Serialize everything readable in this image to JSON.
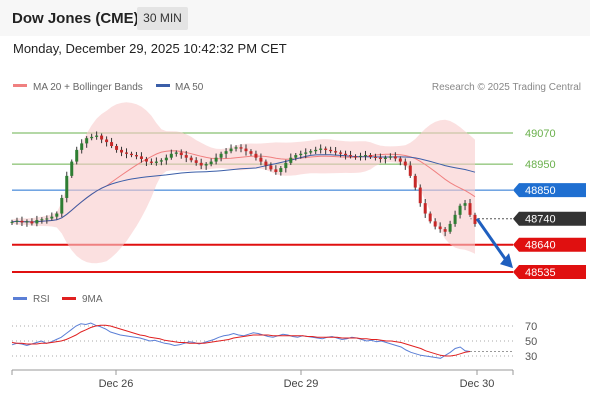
{
  "header": {
    "title": "Dow Jones (CME)",
    "timeframe": "30 MIN",
    "datetime": "Monday, December 29, 2025 10:42:32 PM CET"
  },
  "legend": {
    "ma20_label": "MA 20 + Bollinger Bands",
    "ma50_label": "MA 50",
    "credit": "Research © 2025 Trading Central",
    "colors": {
      "ma20": "#f08080",
      "ma50": "#3b5ea8"
    }
  },
  "rsi_legend": {
    "rsi_label": "RSI",
    "ma_label": "9MA",
    "colors": {
      "rsi": "#5b7fd6",
      "ma": "#e02020"
    }
  },
  "chart_data": [
    {
      "type": "candlestick",
      "title": "Dow Jones (CME) 30 MIN",
      "xlabel": "",
      "ylabel": "",
      "ylim": [
        48480,
        49200
      ],
      "x_tick_labels": [
        "Dec 26",
        "Dec 29",
        "Dec 30"
      ],
      "price_levels": [
        {
          "value": 49070,
          "label": "49070",
          "kind": "resistance",
          "color": "#6ab04c"
        },
        {
          "value": 48950,
          "label": "48950",
          "kind": "resistance",
          "color": "#6ab04c"
        },
        {
          "value": 48850,
          "label": "48850",
          "kind": "pivot",
          "color": "#1f6fd1"
        },
        {
          "value": 48740,
          "label": "48740",
          "kind": "last_price",
          "color": "#333333"
        },
        {
          "value": 48640,
          "label": "48640",
          "kind": "support",
          "color": "#e01010"
        },
        {
          "value": 48535,
          "label": "48535",
          "kind": "support",
          "color": "#e01010"
        }
      ],
      "close_path": [
        48728,
        48732,
        48726,
        48730,
        48722,
        48735,
        48738,
        48741,
        48748,
        48760,
        48820,
        48905,
        48960,
        49005,
        49030,
        49050,
        49055,
        49060,
        49045,
        49035,
        49020,
        49005,
        48995,
        48990,
        48985,
        48980,
        48970,
        48960,
        48955,
        48960,
        48965,
        48975,
        48990,
        48995,
        48985,
        48975,
        48965,
        48955,
        48945,
        48950,
        48960,
        48975,
        48990,
        49000,
        49010,
        49015,
        49010,
        49000,
        48990,
        48975,
        48960,
        48945,
        48930,
        48920,
        48935,
        48955,
        48975,
        48985,
        48990,
        48995,
        49000,
        49005,
        49010,
        49005,
        49000,
        48995,
        48990,
        48985,
        48980,
        48978,
        48982,
        48985,
        48978,
        48975,
        48970,
        48975,
        48980,
        48972,
        48960,
        48945,
        48905,
        48860,
        48800,
        48760,
        48730,
        48710,
        48700,
        48690,
        48720,
        48755,
        48790,
        48800,
        48755,
        48720
      ],
      "forecast": {
        "from": 48740,
        "to": 48550,
        "direction": "down"
      }
    },
    {
      "type": "line",
      "title": "RSI",
      "ylim": [
        20,
        80
      ],
      "y_tick_labels": [
        "70",
        "50",
        "30"
      ],
      "y_ticks": [
        70,
        50,
        30
      ],
      "series": [
        {
          "name": "RSI",
          "values": [
            45,
            47,
            46,
            44,
            46,
            48,
            50,
            47,
            49,
            52,
            55,
            60,
            65,
            70,
            73,
            72,
            74,
            71,
            69,
            66,
            62,
            60,
            58,
            57,
            56,
            55,
            54,
            52,
            50,
            51,
            49,
            47,
            46,
            44,
            45,
            47,
            49,
            48,
            46,
            48,
            50,
            52,
            55,
            57,
            58,
            60,
            58,
            57,
            59,
            61,
            60,
            58,
            56,
            55,
            57,
            59,
            58,
            56,
            55,
            57,
            56,
            55,
            54,
            53,
            55,
            56,
            54,
            52,
            53,
            55,
            54,
            52,
            50,
            51,
            49,
            50,
            48,
            46,
            44,
            42,
            38,
            35,
            33,
            31,
            30,
            29,
            28,
            27,
            31,
            35,
            40,
            42,
            37,
            36
          ]
        },
        {
          "name": "9MA",
          "values": [
            48,
            47,
            47,
            46,
            46,
            46,
            47,
            47,
            48,
            49,
            50,
            52,
            55,
            58,
            62,
            65,
            68,
            70,
            71,
            71,
            70,
            68,
            66,
            64,
            62,
            60,
            58,
            57,
            55,
            54,
            53,
            51,
            50,
            49,
            48,
            48,
            47,
            47,
            47,
            47,
            48,
            49,
            50,
            51,
            52,
            54,
            55,
            56,
            57,
            58,
            58,
            58,
            58,
            57,
            57,
            57,
            57,
            57,
            57,
            57,
            56,
            56,
            55,
            55,
            55,
            55,
            55,
            54,
            54,
            54,
            54,
            53,
            53,
            52,
            52,
            51,
            50,
            50,
            49,
            48,
            46,
            44,
            42,
            40,
            37,
            35,
            33,
            31,
            30,
            30,
            31,
            33,
            35,
            36
          ]
        }
      ]
    }
  ]
}
